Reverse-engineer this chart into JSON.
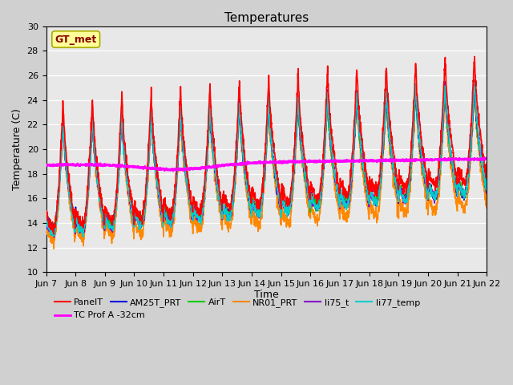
{
  "title": "Temperatures",
  "xlabel": "Time",
  "ylabel": "Temperature (C)",
  "ylim": [
    10,
    30
  ],
  "xlim": [
    0,
    15
  ],
  "x_tick_labels": [
    "Jun 7",
    "Jun 8",
    "Jun 9",
    "Jun 10",
    "Jun 11",
    "Jun 12",
    "Jun 13",
    "Jun 14",
    "Jun 15",
    "Jun 16",
    "Jun 17",
    "Jun 18",
    "Jun 19",
    "Jun 20",
    "Jun 21",
    "Jun 22"
  ],
  "fig_bg": "#d0d0d0",
  "plot_bg": "#e8e8e8",
  "annotation_text": "GT_met",
  "annotation_color": "#8b0000",
  "annotation_bg": "#ffff99",
  "annotation_edge": "#aaaa00",
  "series": {
    "PanelT": {
      "color": "#ff0000",
      "lw": 1.2,
      "zorder": 5
    },
    "AM25T_PRT": {
      "color": "#0000dd",
      "lw": 1.2,
      "zorder": 4
    },
    "AirT": {
      "color": "#00cc00",
      "lw": 1.2,
      "zorder": 4
    },
    "NR01_PRT": {
      "color": "#ff8800",
      "lw": 1.2,
      "zorder": 3
    },
    "li75_t": {
      "color": "#8800cc",
      "lw": 1.2,
      "zorder": 4
    },
    "li77_temp": {
      "color": "#00cccc",
      "lw": 1.2,
      "zorder": 4
    },
    "TC Prof A -32cm": {
      "color": "#ff00ff",
      "lw": 1.8,
      "zorder": 6
    }
  },
  "n_days": 15,
  "pts_per_day": 144,
  "seed": 42
}
